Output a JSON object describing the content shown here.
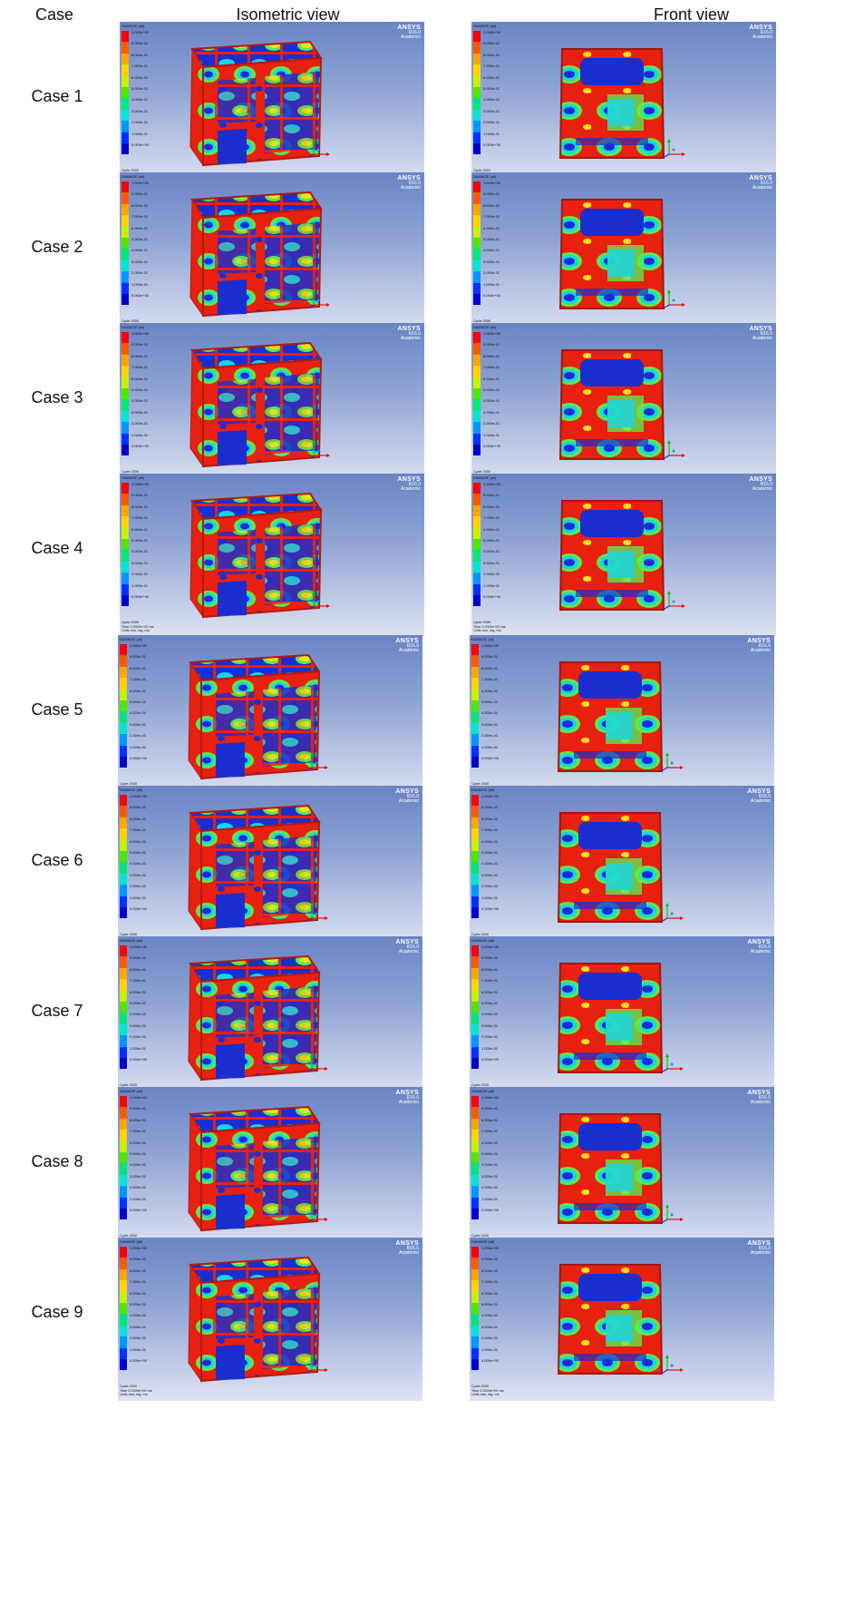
{
  "headers": {
    "case": "Case",
    "isometric": "Isometric view",
    "front": "Front view"
  },
  "cases": [
    {
      "label": "Case 1"
    },
    {
      "label": "Case 2"
    },
    {
      "label": "Case 3"
    },
    {
      "label": "Case 4"
    },
    {
      "label": "Case 5"
    },
    {
      "label": "Case 6"
    },
    {
      "label": "Case 7"
    },
    {
      "label": "Case 8"
    },
    {
      "label": "Case 9"
    }
  ],
  "panel_common": {
    "brand": "ANSYS",
    "version": "R16.0",
    "edition": "Academic",
    "legend_title": "DAMAGE (all)",
    "legend_ticks": [
      "1.000e+00",
      "9.000e-01",
      "8.000e-01",
      "7.000e-01",
      "6.000e-01",
      "5.000e-01",
      "4.000e-01",
      "3.000e-01",
      "2.000e-01",
      "1.000e-01",
      "0.000e+00"
    ],
    "footer_line1": "Cycle 2000",
    "footer_line2": "Time 2.0000e+00 ms",
    "footer_line3": "Units mm, mg, ms",
    "legend_colors": [
      "#ff0000",
      "#ff5a00",
      "#ffa500",
      "#ffd200",
      "#c8f000",
      "#50e600",
      "#00e67a",
      "#00e6d2",
      "#0096ff",
      "#0032ff",
      "#0000cc"
    ]
  },
  "colors": {
    "red": "#e8200f",
    "blue": "#1a2ed0",
    "cyan": "#17d4e8",
    "green": "#5ee84a",
    "yellow": "#f4e21a",
    "background_top": "#6a84c4",
    "background_bottom": "#dde3f2"
  }
}
